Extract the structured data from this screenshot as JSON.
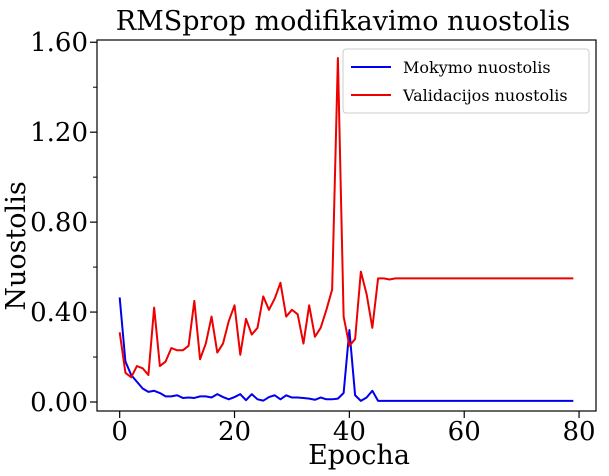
{
  "chart_data": {
    "type": "line",
    "title": "RMSprop modifikavimo nuostolis",
    "xlabel": "Epocha",
    "ylabel": "Nuostolis",
    "xlim": [
      -3.95,
      82.95
    ],
    "ylim": [
      -0.04,
      1.61
    ],
    "xticks": [
      0,
      20,
      40,
      60,
      80
    ],
    "xtick_labels": [
      "0",
      "20",
      "40",
      "60",
      "80"
    ],
    "yticks": [
      0.0,
      0.4,
      0.8,
      1.2,
      1.6
    ],
    "ytick_labels": [
      "0.00",
      "0.40",
      "0.80",
      "1.20",
      "1.60"
    ],
    "y_minor_ticks": [
      0.2,
      0.6,
      1.0,
      1.4
    ],
    "grid": false,
    "legend_position": "top-right",
    "x": [
      0,
      1,
      2,
      3,
      4,
      5,
      6,
      7,
      8,
      9,
      10,
      11,
      12,
      13,
      14,
      15,
      16,
      17,
      18,
      19,
      20,
      21,
      22,
      23,
      24,
      25,
      26,
      27,
      28,
      29,
      30,
      31,
      32,
      33,
      34,
      35,
      36,
      37,
      38,
      39,
      40,
      41,
      42,
      43,
      44,
      45,
      46,
      47,
      48,
      49,
      50,
      51,
      52,
      53,
      54,
      55,
      56,
      57,
      58,
      59,
      60,
      61,
      62,
      63,
      64,
      65,
      66,
      67,
      68,
      69,
      70,
      71,
      72,
      73,
      74,
      75,
      76,
      77,
      78,
      79
    ],
    "series": [
      {
        "name": "Mokymo nuostolis",
        "color": "#0000ee",
        "values": [
          0.465,
          0.18,
          0.12,
          0.09,
          0.06,
          0.045,
          0.05,
          0.04,
          0.025,
          0.025,
          0.03,
          0.018,
          0.02,
          0.018,
          0.025,
          0.025,
          0.02,
          0.035,
          0.022,
          0.012,
          0.022,
          0.035,
          0.008,
          0.035,
          0.012,
          0.006,
          0.022,
          0.03,
          0.012,
          0.03,
          0.02,
          0.02,
          0.018,
          0.015,
          0.01,
          0.02,
          0.012,
          0.012,
          0.015,
          0.04,
          0.32,
          0.03,
          0.005,
          0.02,
          0.05,
          0.005,
          0.005,
          0.005,
          0.005,
          0.005,
          0.005,
          0.005,
          0.005,
          0.005,
          0.005,
          0.005,
          0.005,
          0.005,
          0.005,
          0.005,
          0.005,
          0.005,
          0.005,
          0.005,
          0.005,
          0.005,
          0.005,
          0.005,
          0.005,
          0.005,
          0.005,
          0.005,
          0.005,
          0.005,
          0.005,
          0.005,
          0.005,
          0.005,
          0.005,
          0.005
        ]
      },
      {
        "name": "Validacijos nuostolis",
        "color": "#ee0000",
        "values": [
          0.31,
          0.13,
          0.11,
          0.16,
          0.15,
          0.12,
          0.42,
          0.16,
          0.18,
          0.24,
          0.23,
          0.23,
          0.25,
          0.45,
          0.19,
          0.26,
          0.38,
          0.22,
          0.26,
          0.36,
          0.43,
          0.21,
          0.37,
          0.3,
          0.33,
          0.47,
          0.41,
          0.46,
          0.53,
          0.38,
          0.41,
          0.39,
          0.26,
          0.43,
          0.29,
          0.33,
          0.41,
          0.5,
          1.53,
          0.38,
          0.25,
          0.28,
          0.58,
          0.48,
          0.33,
          0.55,
          0.55,
          0.545,
          0.55,
          0.55,
          0.55,
          0.55,
          0.55,
          0.55,
          0.55,
          0.55,
          0.55,
          0.55,
          0.55,
          0.55,
          0.55,
          0.55,
          0.55,
          0.55,
          0.55,
          0.55,
          0.55,
          0.55,
          0.55,
          0.55,
          0.55,
          0.55,
          0.55,
          0.55,
          0.55,
          0.55,
          0.55,
          0.55,
          0.55,
          0.55
        ]
      }
    ]
  }
}
